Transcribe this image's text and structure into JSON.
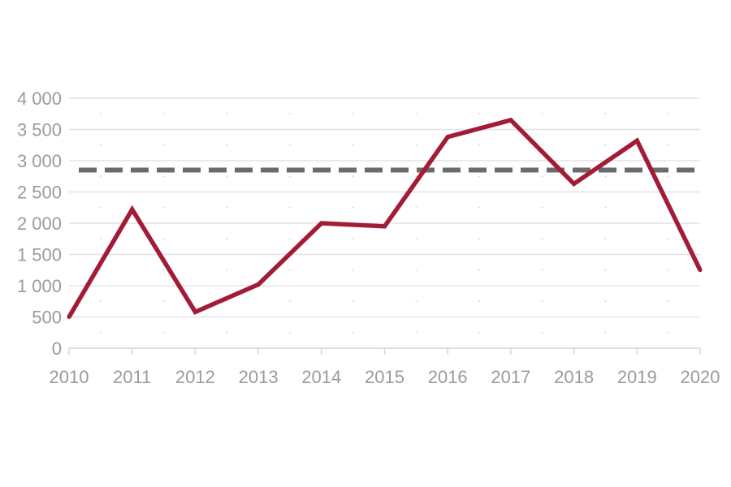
{
  "chart_data": {
    "type": "line",
    "title": "",
    "xlabel": "",
    "ylabel": "",
    "x": [
      "2010",
      "2011",
      "2012",
      "2013",
      "2014",
      "2015",
      "2016",
      "2017",
      "2018",
      "2019",
      "2020"
    ],
    "series": [
      {
        "values": [
          500,
          2220,
          580,
          1020,
          2000,
          1950,
          3380,
          3650,
          2630,
          3320,
          1250
        ],
        "color": "#a31c37"
      }
    ],
    "reference_line": {
      "value": 2850,
      "style": "dashed",
      "color": "#6b6b6b"
    },
    "ylim": [
      0,
      4000
    ],
    "yticks": [
      0,
      500,
      1000,
      1500,
      2000,
      2500,
      3000,
      3500,
      4000
    ],
    "ytick_labels": [
      "0",
      "500",
      "1 000",
      "1 500",
      "2 000",
      "2 500",
      "3 000",
      "3 500",
      "4 000"
    ],
    "grid": true,
    "legend": "none"
  }
}
